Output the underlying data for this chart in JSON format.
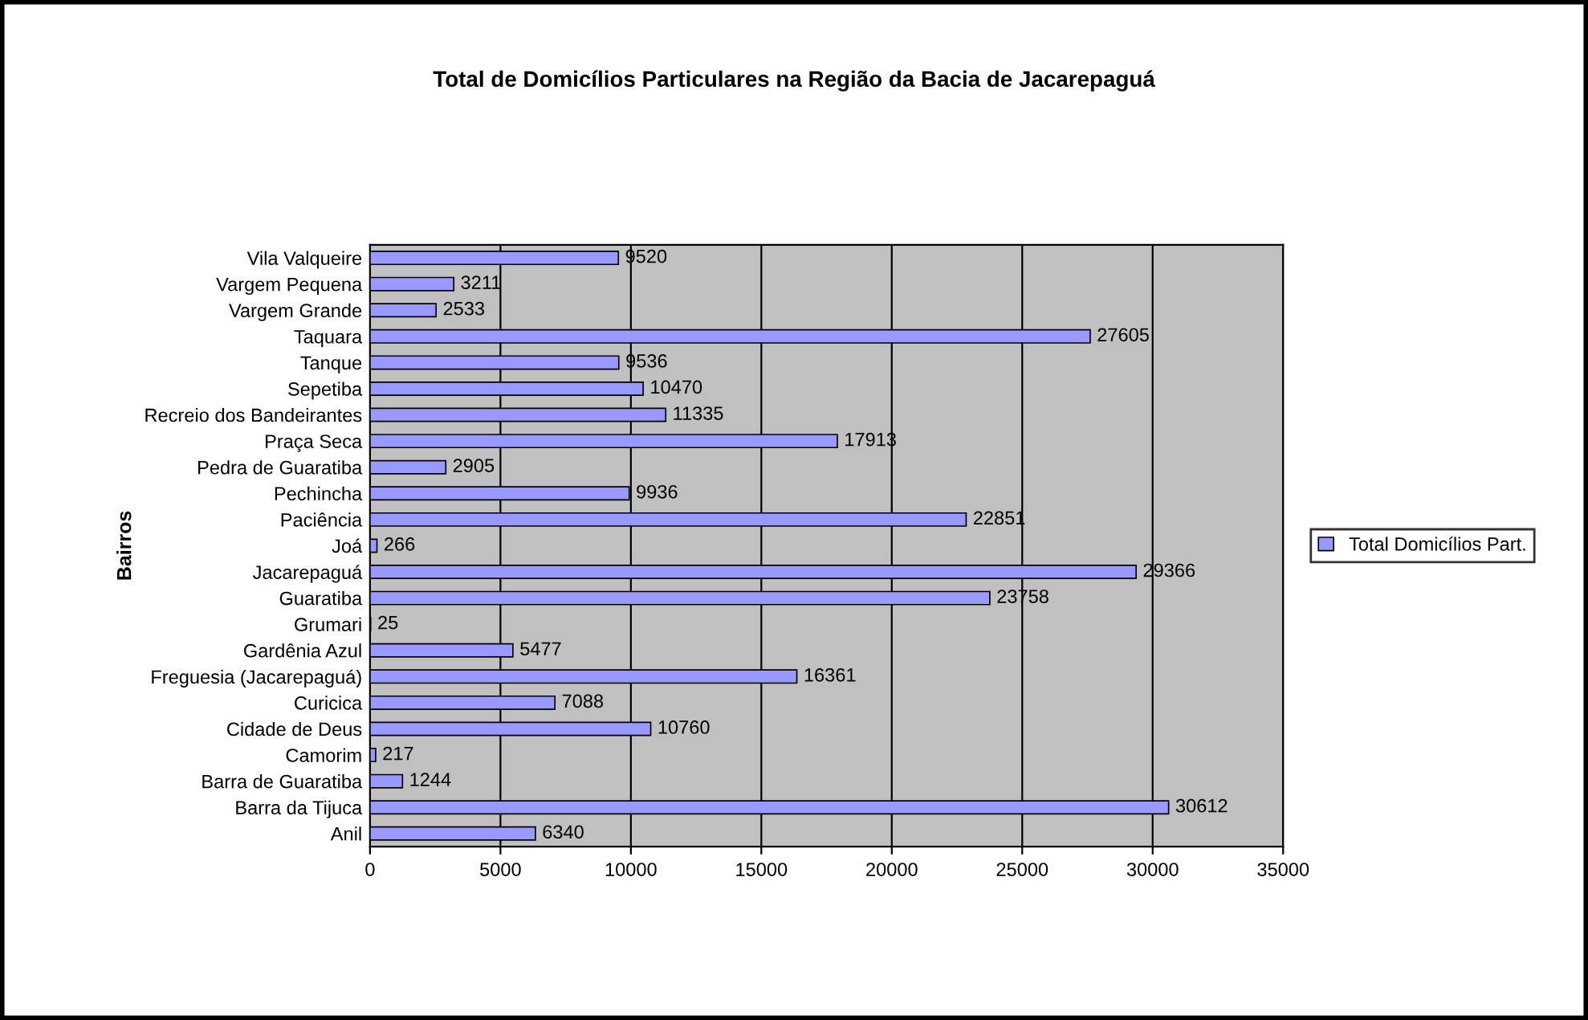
{
  "chart_data": {
    "type": "bar",
    "orientation": "horizontal",
    "title": "Total de Domicílios Particulares na Região da Bacia de Jacarepaguá",
    "ylabel": "Bairros",
    "categories": [
      "Vila Valqueire",
      "Vargem Pequena",
      "Vargem Grande",
      "Taquara",
      "Tanque",
      "Sepetiba",
      "Recreio dos Bandeirantes",
      "Praça Seca",
      "Pedra de Guaratiba",
      "Pechincha",
      "Paciência",
      "Joá",
      "Jacarepaguá",
      "Guaratiba",
      "Grumari",
      "Gardênia Azul",
      "Freguesia (Jacarepaguá)",
      "Curicica",
      "Cidade de Deus",
      "Camorim",
      "Barra de Guaratiba",
      "Barra da Tijuca",
      "Anil"
    ],
    "series": [
      {
        "name": "Total Domicílios Part.",
        "color": "#9999ff",
        "values": [
          9520,
          3211,
          2533,
          27605,
          9536,
          10470,
          11335,
          17913,
          2905,
          9936,
          22851,
          266,
          29366,
          23758,
          25,
          5477,
          16361,
          7088,
          10760,
          217,
          1244,
          30612,
          6340
        ]
      }
    ],
    "xlim": [
      0,
      35000
    ],
    "xticks": [
      0,
      5000,
      10000,
      15000,
      20000,
      25000,
      30000,
      35000
    ],
    "grid": "x",
    "legend": "right",
    "data_labels": true
  }
}
